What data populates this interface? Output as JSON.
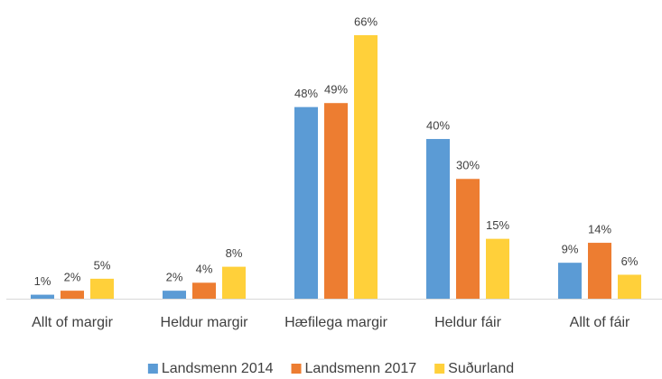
{
  "chart_data": {
    "type": "bar",
    "categories": [
      "Allt of margir",
      "Heldur margir",
      "Hæfilega margir",
      "Heldur fáir",
      "Allt of fáir"
    ],
    "series": [
      {
        "name": "Landsmenn 2014",
        "color": "#5b9bd5",
        "values": [
          1,
          2,
          48,
          40,
          9
        ],
        "value_labels": [
          "1%",
          "2%",
          "48%",
          "40%",
          "9%"
        ]
      },
      {
        "name": "Landsmenn 2017",
        "color": "#ed7d31",
        "values": [
          2,
          4,
          49,
          30,
          14
        ],
        "value_labels": [
          "2%",
          "4%",
          "49%",
          "30%",
          "14%"
        ]
      },
      {
        "name": "Suðurland",
        "color": "#ffd03a",
        "values": [
          5,
          8,
          66,
          15,
          6
        ],
        "value_labels": [
          "5%",
          "8%",
          "66%",
          "15%",
          "6%"
        ]
      }
    ],
    "legend": "bottom"
  }
}
